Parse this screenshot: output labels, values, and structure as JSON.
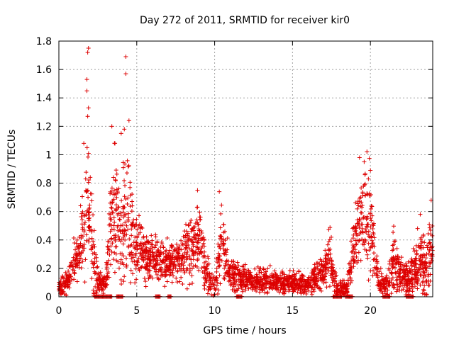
{
  "chart_data": {
    "type": "scatter",
    "title": "Day 272 of 2011, SRMTID for receiver kir0",
    "xlabel": "GPS time / hours",
    "ylabel": "SRMTID / TECUs",
    "xlim": [
      0,
      24
    ],
    "ylim": [
      0,
      1.8
    ],
    "xticks": [
      0,
      5,
      10,
      15,
      20
    ],
    "yticks": [
      0,
      0.2,
      0.4,
      0.6,
      0.8,
      1,
      1.2,
      1.4,
      1.6,
      1.8
    ],
    "ytick_labels": [
      "0",
      "0.2",
      "0.4",
      "0.6",
      "0.8",
      "1",
      "1.2",
      "1.4",
      "1.6",
      "1.8"
    ],
    "grid": true,
    "marker": "+",
    "series_color": "#dd0000",
    "peaks": [
      {
        "x": 1.9,
        "y": 1.75
      },
      {
        "x": 1.85,
        "y": 1.72
      },
      {
        "x": 1.8,
        "y": 1.53
      },
      {
        "x": 1.8,
        "y": 1.45
      },
      {
        "x": 1.9,
        "y": 1.33
      },
      {
        "x": 1.85,
        "y": 1.27
      },
      {
        "x": 4.3,
        "y": 1.69
      },
      {
        "x": 4.3,
        "y": 1.57
      },
      {
        "x": 4.5,
        "y": 1.24
      },
      {
        "x": 3.4,
        "y": 1.2
      },
      {
        "x": 4.2,
        "y": 1.18
      },
      {
        "x": 4.0,
        "y": 1.15
      },
      {
        "x": 3.6,
        "y": 1.08
      },
      {
        "x": 1.6,
        "y": 1.08
      },
      {
        "x": 10.3,
        "y": 0.74
      },
      {
        "x": 8.9,
        "y": 0.75
      },
      {
        "x": 19.3,
        "y": 0.98
      },
      {
        "x": 19.6,
        "y": 0.95
      },
      {
        "x": 20.0,
        "y": 0.89
      },
      {
        "x": 23.9,
        "y": 0.68
      },
      {
        "x": 23.2,
        "y": 0.58
      }
    ],
    "envelope": [
      {
        "x": 0.0,
        "y": 0.06,
        "s": 0.04
      },
      {
        "x": 0.5,
        "y": 0.08,
        "s": 0.05
      },
      {
        "x": 1.0,
        "y": 0.25,
        "s": 0.1
      },
      {
        "x": 1.3,
        "y": 0.3,
        "s": 0.1
      },
      {
        "x": 1.6,
        "y": 0.5,
        "s": 0.25
      },
      {
        "x": 1.9,
        "y": 0.7,
        "s": 0.3
      },
      {
        "x": 2.2,
        "y": 0.3,
        "s": 0.2
      },
      {
        "x": 2.5,
        "y": 0.1,
        "s": 0.06
      },
      {
        "x": 3.0,
        "y": 0.1,
        "s": 0.05
      },
      {
        "x": 3.3,
        "y": 0.5,
        "s": 0.2
      },
      {
        "x": 3.6,
        "y": 0.6,
        "s": 0.3
      },
      {
        "x": 4.0,
        "y": 0.4,
        "s": 0.25
      },
      {
        "x": 4.4,
        "y": 0.6,
        "s": 0.3
      },
      {
        "x": 4.8,
        "y": 0.4,
        "s": 0.2
      },
      {
        "x": 5.5,
        "y": 0.3,
        "s": 0.12
      },
      {
        "x": 6.5,
        "y": 0.25,
        "s": 0.1
      },
      {
        "x": 7.5,
        "y": 0.25,
        "s": 0.1
      },
      {
        "x": 8.5,
        "y": 0.35,
        "s": 0.15
      },
      {
        "x": 9.0,
        "y": 0.45,
        "s": 0.2
      },
      {
        "x": 9.5,
        "y": 0.15,
        "s": 0.1
      },
      {
        "x": 10.0,
        "y": 0.06,
        "s": 0.05
      },
      {
        "x": 10.4,
        "y": 0.4,
        "s": 0.2
      },
      {
        "x": 11.0,
        "y": 0.15,
        "s": 0.08
      },
      {
        "x": 12.0,
        "y": 0.12,
        "s": 0.06
      },
      {
        "x": 13.0,
        "y": 0.12,
        "s": 0.06
      },
      {
        "x": 14.0,
        "y": 0.11,
        "s": 0.05
      },
      {
        "x": 15.0,
        "y": 0.1,
        "s": 0.05
      },
      {
        "x": 16.0,
        "y": 0.09,
        "s": 0.05
      },
      {
        "x": 16.8,
        "y": 0.15,
        "s": 0.08
      },
      {
        "x": 17.4,
        "y": 0.3,
        "s": 0.12
      },
      {
        "x": 17.8,
        "y": 0.06,
        "s": 0.05
      },
      {
        "x": 18.5,
        "y": 0.05,
        "s": 0.03
      },
      {
        "x": 19.0,
        "y": 0.4,
        "s": 0.2
      },
      {
        "x": 19.5,
        "y": 0.6,
        "s": 0.25
      },
      {
        "x": 20.0,
        "y": 0.5,
        "s": 0.25
      },
      {
        "x": 20.5,
        "y": 0.1,
        "s": 0.06
      },
      {
        "x": 21.0,
        "y": 0.08,
        "s": 0.05
      },
      {
        "x": 21.5,
        "y": 0.25,
        "s": 0.15
      },
      {
        "x": 22.0,
        "y": 0.15,
        "s": 0.1
      },
      {
        "x": 22.5,
        "y": 0.12,
        "s": 0.08
      },
      {
        "x": 23.0,
        "y": 0.25,
        "s": 0.15
      },
      {
        "x": 23.5,
        "y": 0.2,
        "s": 0.12
      },
      {
        "x": 24.0,
        "y": 0.35,
        "s": 0.2
      }
    ],
    "zero_band_ranges": [
      [
        2.3,
        3.4
      ],
      [
        3.7,
        4.1
      ],
      [
        6.2,
        6.5
      ],
      [
        7.0,
        7.2
      ],
      [
        11.4,
        11.8
      ],
      [
        17.6,
        18.2
      ],
      [
        18.4,
        18.9
      ],
      [
        20.8,
        21.3
      ],
      [
        22.3,
        22.8
      ]
    ]
  }
}
